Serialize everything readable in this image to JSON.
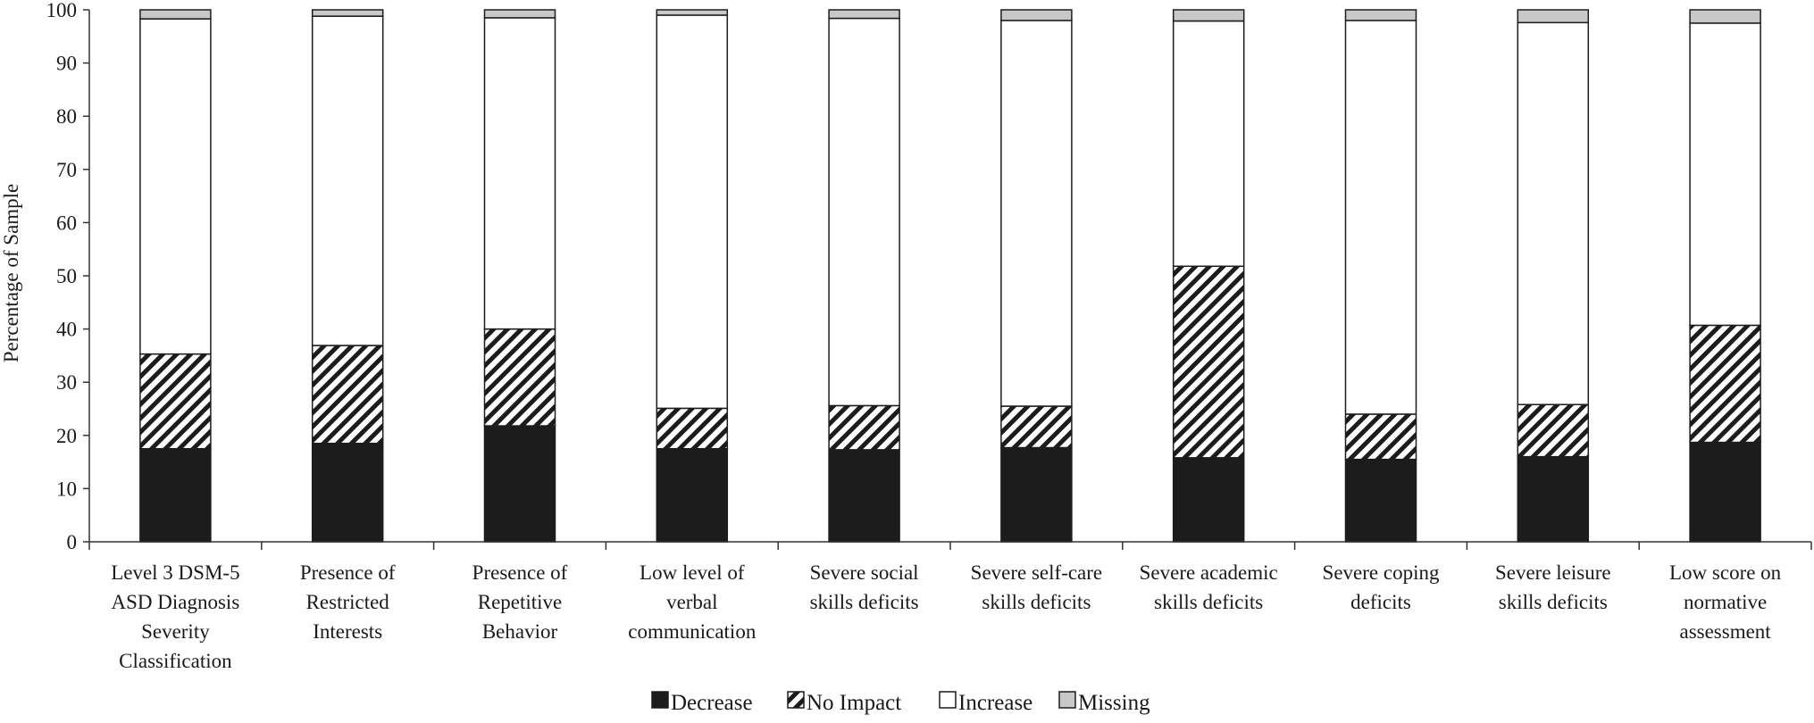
{
  "chart_data": {
    "type": "bar",
    "stacked": true,
    "ylabel": "Percentage of Sample",
    "xlabel": "",
    "ylim": [
      0,
      100
    ],
    "yticks": [
      0,
      10,
      20,
      30,
      40,
      50,
      60,
      70,
      80,
      90,
      100
    ],
    "grid": false,
    "legend_position": "bottom-center",
    "categories": [
      [
        "Level 3 DSM-5",
        "ASD Diagnosis",
        "Severity",
        "Classification"
      ],
      [
        "Presence of",
        "Restricted",
        "Interests"
      ],
      [
        "Presence of",
        "Repetitive",
        "Behavior"
      ],
      [
        "Low level of",
        "verbal",
        "communication"
      ],
      [
        "Severe social",
        "skills deficits"
      ],
      [
        "Severe self-care",
        "skills deficits"
      ],
      [
        "Severe academic",
        "skills deficits"
      ],
      [
        "Severe coping",
        "deficits"
      ],
      [
        "Severe leisure",
        "skills deficits"
      ],
      [
        "Low score on",
        "normative",
        "assessment"
      ]
    ],
    "series": [
      {
        "name": "Decrease",
        "pattern": "solid",
        "color": "#1c1c1c",
        "values": [
          17.5,
          18.5,
          21.8,
          17.5,
          17.3,
          17.7,
          15.8,
          15.5,
          16.0,
          18.7
        ]
      },
      {
        "name": "No Impact",
        "pattern": "hatch",
        "color": "#1c1c1c",
        "values": [
          17.8,
          18.4,
          18.2,
          7.6,
          8.3,
          7.8,
          36.0,
          8.5,
          9.8,
          22.0
        ]
      },
      {
        "name": "Increase",
        "pattern": "open",
        "color": "#ffffff",
        "values": [
          63.0,
          61.9,
          58.5,
          73.9,
          72.8,
          72.5,
          46.1,
          74.0,
          71.8,
          56.8
        ]
      },
      {
        "name": "Missing",
        "pattern": "gray",
        "color": "#c8c8c8",
        "values": [
          1.7,
          1.2,
          1.5,
          1.0,
          1.6,
          2.0,
          2.1,
          2.0,
          2.4,
          2.5
        ]
      }
    ]
  }
}
